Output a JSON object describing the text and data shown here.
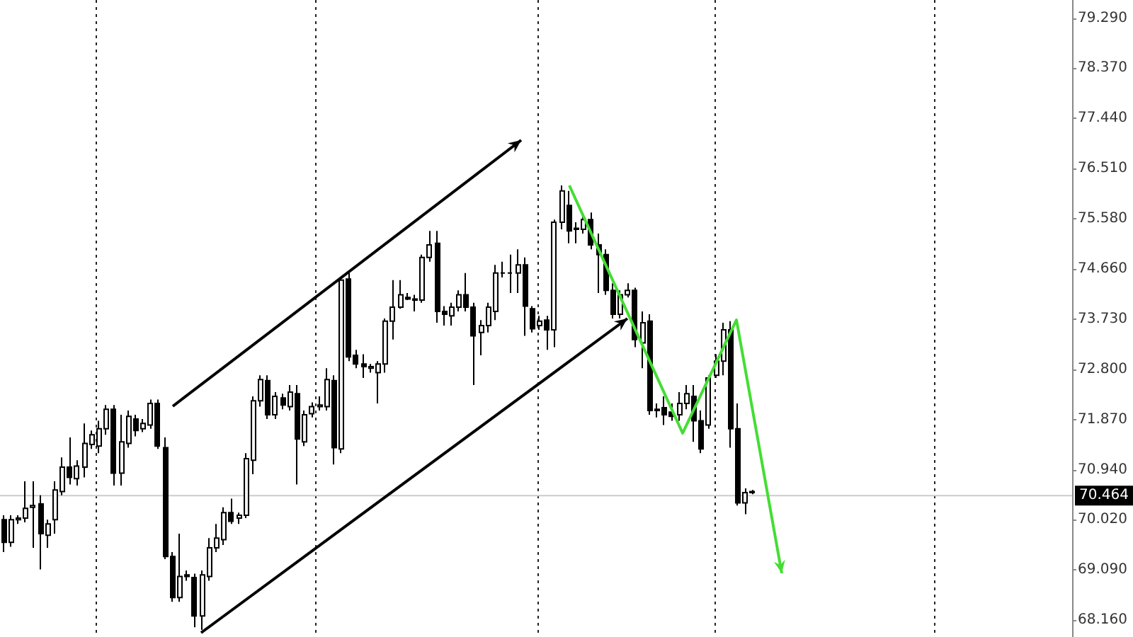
{
  "chart_data": {
    "type": "candlestick",
    "color": "#000000",
    "tick_labels": "y",
    "categories": [
      null,
      null,
      null,
      null,
      null,
      null,
      null,
      null,
      null,
      null,
      null,
      null,
      null,
      null,
      null,
      null,
      null,
      null,
      null,
      null,
      null,
      null,
      null,
      null,
      null,
      null,
      null,
      null,
      null,
      null,
      null,
      null,
      null,
      null,
      null,
      null,
      null,
      null,
      null,
      null,
      null,
      null,
      null,
      null,
      null,
      null,
      null,
      null,
      null,
      null,
      null,
      null,
      null,
      null,
      null,
      null,
      null,
      null,
      null,
      null,
      null,
      null,
      null,
      null,
      null,
      null,
      null,
      null,
      null,
      null,
      null,
      null,
      null,
      null,
      null,
      null,
      null,
      null,
      null,
      null,
      null,
      null,
      null,
      null,
      null,
      null,
      null,
      null,
      null,
      null,
      null,
      null,
      null,
      null,
      null,
      null,
      null,
      null,
      null,
      null,
      null,
      null,
      null,
      null,
      null,
      null,
      null,
      null,
      null,
      null,
      null,
      null,
      null,
      null,
      null,
      null,
      null,
      null,
      null,
      null,
      null,
      null,
      null,
      null,
      null,
      null,
      null,
      null,
      null,
      null,
      null,
      null,
      null,
      null,
      null,
      null,
      null,
      null,
      null,
      null,
      null,
      null,
      null,
      null,
      null,
      null
    ],
    "ylim": [
      67.85,
      79.63
    ],
    "yticks": [
      {
        "value": 68.16,
        "label": "68.160"
      },
      {
        "value": 69.09,
        "label": "69.090"
      },
      {
        "value": 70.02,
        "label": "70.020"
      },
      {
        "value": 70.94,
        "label": "70.940"
      },
      {
        "value": 71.87,
        "label": "71.870"
      },
      {
        "value": 72.8,
        "label": "72.800"
      },
      {
        "value": 73.73,
        "label": "73.730"
      },
      {
        "value": 74.66,
        "label": "74.660"
      },
      {
        "value": 75.58,
        "label": "75.580"
      },
      {
        "value": 76.51,
        "label": "76.510"
      },
      {
        "value": 77.44,
        "label": "77.440"
      },
      {
        "value": 78.37,
        "label": "78.370"
      },
      {
        "value": 79.29,
        "label": "79.290"
      }
    ],
    "ref_lines": [
      {
        "axis": "y",
        "value": 70.464,
        "label": "70.464",
        "color": "#cccccc"
      }
    ],
    "ohlc": [
      [
        70.02,
        70.1,
        69.42,
        69.6
      ],
      [
        69.6,
        70.1,
        69.52,
        70.02
      ],
      [
        70.02,
        70.1,
        69.94,
        70.05
      ],
      [
        70.05,
        70.73,
        69.97,
        70.23
      ],
      [
        70.25,
        70.73,
        69.5,
        70.28
      ],
      [
        70.31,
        70.47,
        69.1,
        69.76
      ],
      [
        69.73,
        70.02,
        69.5,
        69.94
      ],
      [
        70.02,
        70.73,
        69.76,
        70.57
      ],
      [
        70.54,
        71.17,
        70.47,
        70.99
      ],
      [
        70.99,
        71.54,
        70.67,
        70.8
      ],
      [
        70.78,
        71.12,
        70.65,
        71.01
      ],
      [
        70.99,
        71.8,
        70.8,
        71.43
      ],
      [
        71.41,
        71.67,
        71.33,
        71.59
      ],
      [
        71.38,
        71.85,
        71.25,
        71.7
      ],
      [
        71.7,
        72.14,
        71.59,
        72.06
      ],
      [
        72.06,
        72.14,
        70.65,
        70.88
      ],
      [
        70.88,
        71.96,
        70.65,
        71.46
      ],
      [
        71.43,
        72.04,
        71.35,
        71.93
      ],
      [
        71.88,
        71.96,
        71.56,
        71.67
      ],
      [
        71.7,
        71.88,
        71.64,
        71.8
      ],
      [
        71.77,
        72.24,
        71.7,
        72.17
      ],
      [
        72.17,
        72.24,
        71.33,
        71.38
      ],
      [
        71.35,
        71.54,
        69.29,
        69.34
      ],
      [
        69.34,
        69.42,
        68.5,
        68.58
      ],
      [
        68.58,
        69.76,
        68.5,
        68.97
      ],
      [
        69.0,
        69.08,
        68.89,
        68.97
      ],
      [
        68.95,
        69.02,
        68.03,
        68.24
      ],
      [
        68.24,
        69.08,
        67.98,
        69.0
      ],
      [
        68.97,
        69.68,
        68.89,
        69.5
      ],
      [
        69.5,
        69.94,
        69.42,
        69.68
      ],
      [
        69.65,
        70.25,
        69.55,
        70.15
      ],
      [
        70.15,
        70.41,
        69.94,
        69.99
      ],
      [
        70.05,
        70.15,
        69.94,
        70.1
      ],
      [
        70.1,
        71.25,
        70.05,
        71.15
      ],
      [
        71.12,
        72.3,
        70.86,
        72.22
      ],
      [
        72.22,
        72.69,
        72.11,
        72.61
      ],
      [
        72.59,
        72.69,
        71.88,
        71.96
      ],
      [
        71.96,
        72.38,
        71.88,
        72.3
      ],
      [
        72.27,
        72.35,
        72.06,
        72.14
      ],
      [
        72.11,
        72.51,
        72.04,
        72.38
      ],
      [
        72.35,
        72.51,
        70.67,
        71.51
      ],
      [
        71.46,
        72.04,
        71.38,
        71.96
      ],
      [
        71.98,
        72.19,
        71.91,
        72.11
      ],
      [
        72.11,
        72.3,
        72.04,
        72.14
      ],
      [
        72.11,
        72.82,
        72.04,
        72.61
      ],
      [
        72.59,
        72.69,
        71.04,
        71.35
      ],
      [
        71.33,
        74.5,
        71.25,
        74.45
      ],
      [
        74.47,
        74.58,
        72.95,
        73.03
      ],
      [
        73.06,
        73.16,
        72.82,
        72.9
      ],
      [
        72.9,
        73.08,
        72.64,
        72.85
      ],
      [
        72.82,
        72.9,
        72.74,
        72.85
      ],
      [
        72.74,
        72.95,
        72.17,
        72.9
      ],
      [
        72.9,
        73.74,
        72.74,
        73.69
      ],
      [
        73.69,
        74.45,
        73.35,
        73.95
      ],
      [
        73.95,
        74.45,
        73.92,
        74.18
      ],
      [
        74.13,
        74.21,
        74.08,
        74.1
      ],
      [
        74.1,
        74.18,
        73.87,
        74.08
      ],
      [
        74.08,
        74.92,
        74.03,
        74.87
      ],
      [
        74.87,
        75.36,
        74.79,
        75.1
      ],
      [
        75.13,
        75.36,
        73.66,
        73.87
      ],
      [
        73.87,
        73.97,
        73.61,
        73.82
      ],
      [
        73.79,
        74.03,
        73.61,
        73.95
      ],
      [
        73.95,
        74.26,
        73.87,
        74.18
      ],
      [
        74.18,
        74.58,
        73.87,
        73.95
      ],
      [
        73.95,
        74.03,
        72.51,
        73.42
      ],
      [
        73.48,
        73.71,
        73.06,
        73.61
      ],
      [
        73.61,
        74.03,
        73.48,
        73.95
      ],
      [
        73.87,
        74.73,
        73.71,
        74.58
      ],
      [
        74.58,
        74.79,
        74.5,
        74.58
      ],
      [
        74.58,
        74.92,
        74.21,
        74.58
      ],
      [
        74.58,
        75.02,
        74.21,
        74.73
      ],
      [
        74.73,
        74.87,
        73.42,
        73.97
      ],
      [
        73.92,
        73.97,
        73.48,
        73.55
      ],
      [
        73.61,
        73.79,
        73.53,
        73.69
      ],
      [
        73.71,
        73.79,
        73.16,
        73.53
      ],
      [
        73.53,
        75.57,
        73.21,
        75.52
      ],
      [
        75.52,
        76.2,
        75.39,
        76.1
      ],
      [
        75.83,
        76.1,
        75.13,
        75.36
      ],
      [
        75.41,
        75.52,
        75.13,
        75.39
      ],
      [
        75.39,
        75.65,
        75.31,
        75.57
      ],
      [
        75.57,
        75.7,
        75.02,
        75.1
      ],
      [
        75.1,
        75.31,
        74.21,
        74.92
      ],
      [
        74.92,
        75.02,
        74.18,
        74.26
      ],
      [
        74.26,
        74.39,
        73.74,
        73.82
      ],
      [
        73.82,
        74.26,
        73.74,
        74.18
      ],
      [
        74.18,
        74.39,
        74.13,
        74.26
      ],
      [
        74.26,
        74.31,
        73.21,
        73.35
      ],
      [
        73.29,
        73.87,
        72.82,
        73.66
      ],
      [
        73.69,
        73.82,
        71.96,
        72.04
      ],
      [
        72.04,
        72.17,
        71.91,
        72.06
      ],
      [
        72.09,
        72.3,
        71.77,
        71.96
      ],
      [
        72.01,
        72.17,
        71.85,
        71.93
      ],
      [
        71.96,
        72.38,
        71.85,
        72.17
      ],
      [
        72.17,
        72.51,
        72.06,
        72.35
      ],
      [
        72.3,
        72.51,
        71.46,
        71.85
      ],
      [
        71.85,
        72.04,
        71.25,
        71.33
      ],
      [
        71.77,
        72.69,
        71.7,
        72.64
      ],
      [
        72.69,
        73.08,
        72.64,
        72.95
      ],
      [
        72.95,
        73.66,
        72.69,
        73.53
      ],
      [
        73.53,
        73.69,
        71.35,
        71.7
      ],
      [
        71.7,
        72.17,
        70.28,
        70.33
      ],
      [
        70.33,
        70.6,
        70.12,
        70.52
      ],
      [
        70.52,
        70.57,
        70.49,
        70.54
      ],
      null,
      null,
      null,
      null,
      null,
      null,
      null,
      null,
      null,
      null,
      null,
      null,
      null,
      null,
      null,
      null,
      null,
      null,
      null,
      null,
      null,
      null,
      null,
      null,
      null,
      null,
      null,
      null,
      null,
      null,
      null,
      null,
      null,
      null,
      null,
      null,
      null,
      null,
      null,
      null,
      null,
      null,
      null
    ]
  }
}
